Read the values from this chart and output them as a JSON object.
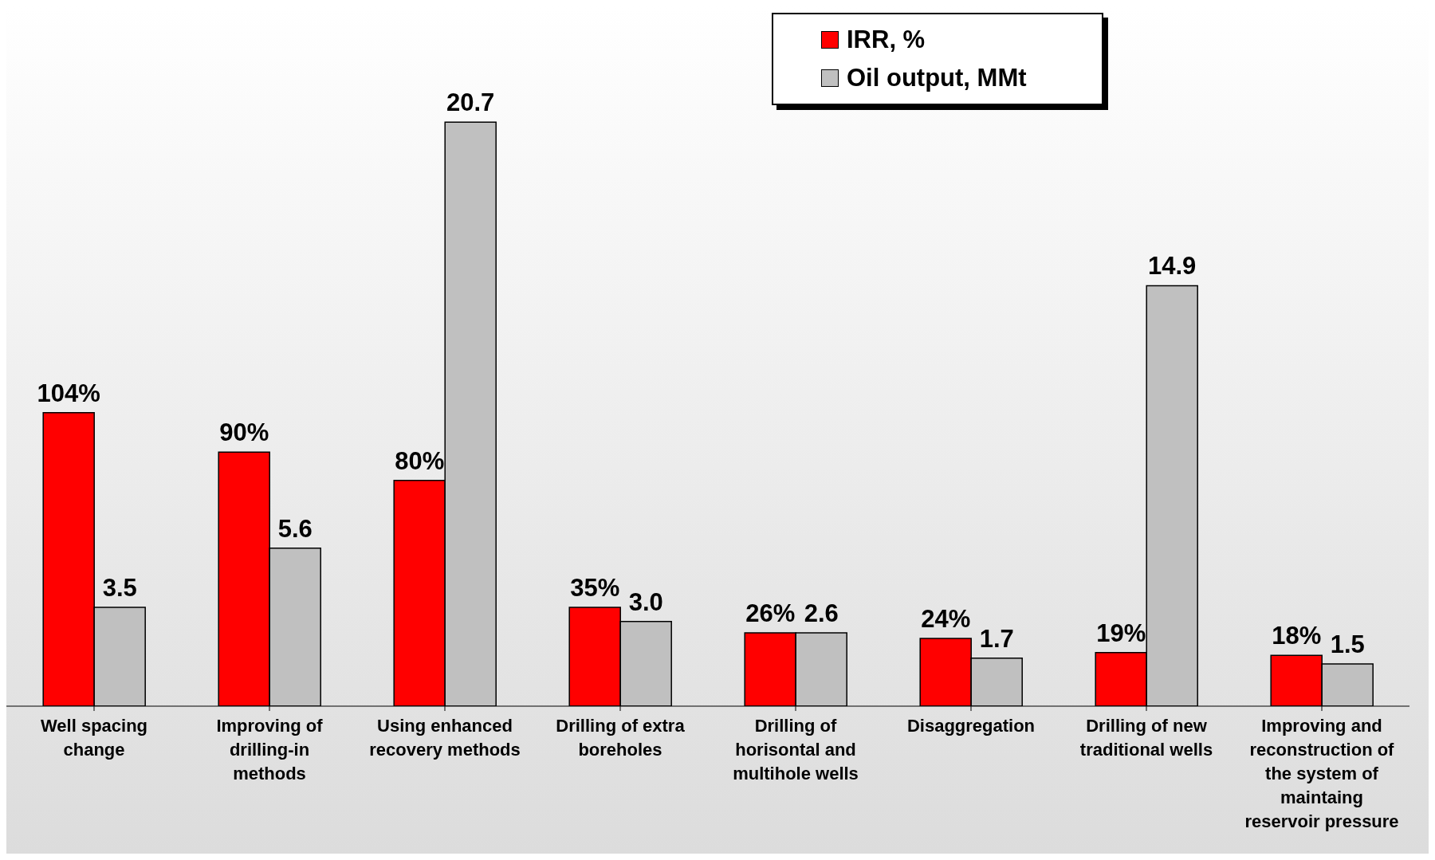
{
  "chart_data": {
    "type": "bar",
    "categories": [
      "Well spacing change",
      "Improving of drilling-in methods",
      "Using enhanced recovery methods",
      "Drilling of extra boreholes",
      "Drilling of horisontal and multihole wells",
      "Disaggregation",
      "Drilling of new traditional wells",
      "Improving and reconstruction of the system of maintaing reservoir pressure"
    ],
    "series": [
      {
        "name": "IRR, %",
        "color": "#ff0000",
        "values": [
          104,
          90,
          80,
          35,
          26,
          24,
          19,
          18
        ],
        "value_labels": [
          "104%",
          "90%",
          "80%",
          "35%",
          "26%",
          "24%",
          "19%",
          "18%"
        ]
      },
      {
        "name": "Oil output, MMt",
        "color": "#c0c0c0",
        "axis": "y2",
        "values": [
          3.5,
          5.6,
          20.7,
          3.0,
          2.6,
          1.7,
          14.9,
          1.5
        ],
        "value_labels": [
          "3.5",
          "5.6",
          "20.7",
          "3.0",
          "2.6",
          "1.7",
          "14.9",
          "1.5"
        ]
      }
    ],
    "ylim": [
      0,
      248
    ],
    "y2lim": [
      0,
      24.8
    ],
    "tick_labels": "x",
    "legend": "top",
    "grid": false
  }
}
